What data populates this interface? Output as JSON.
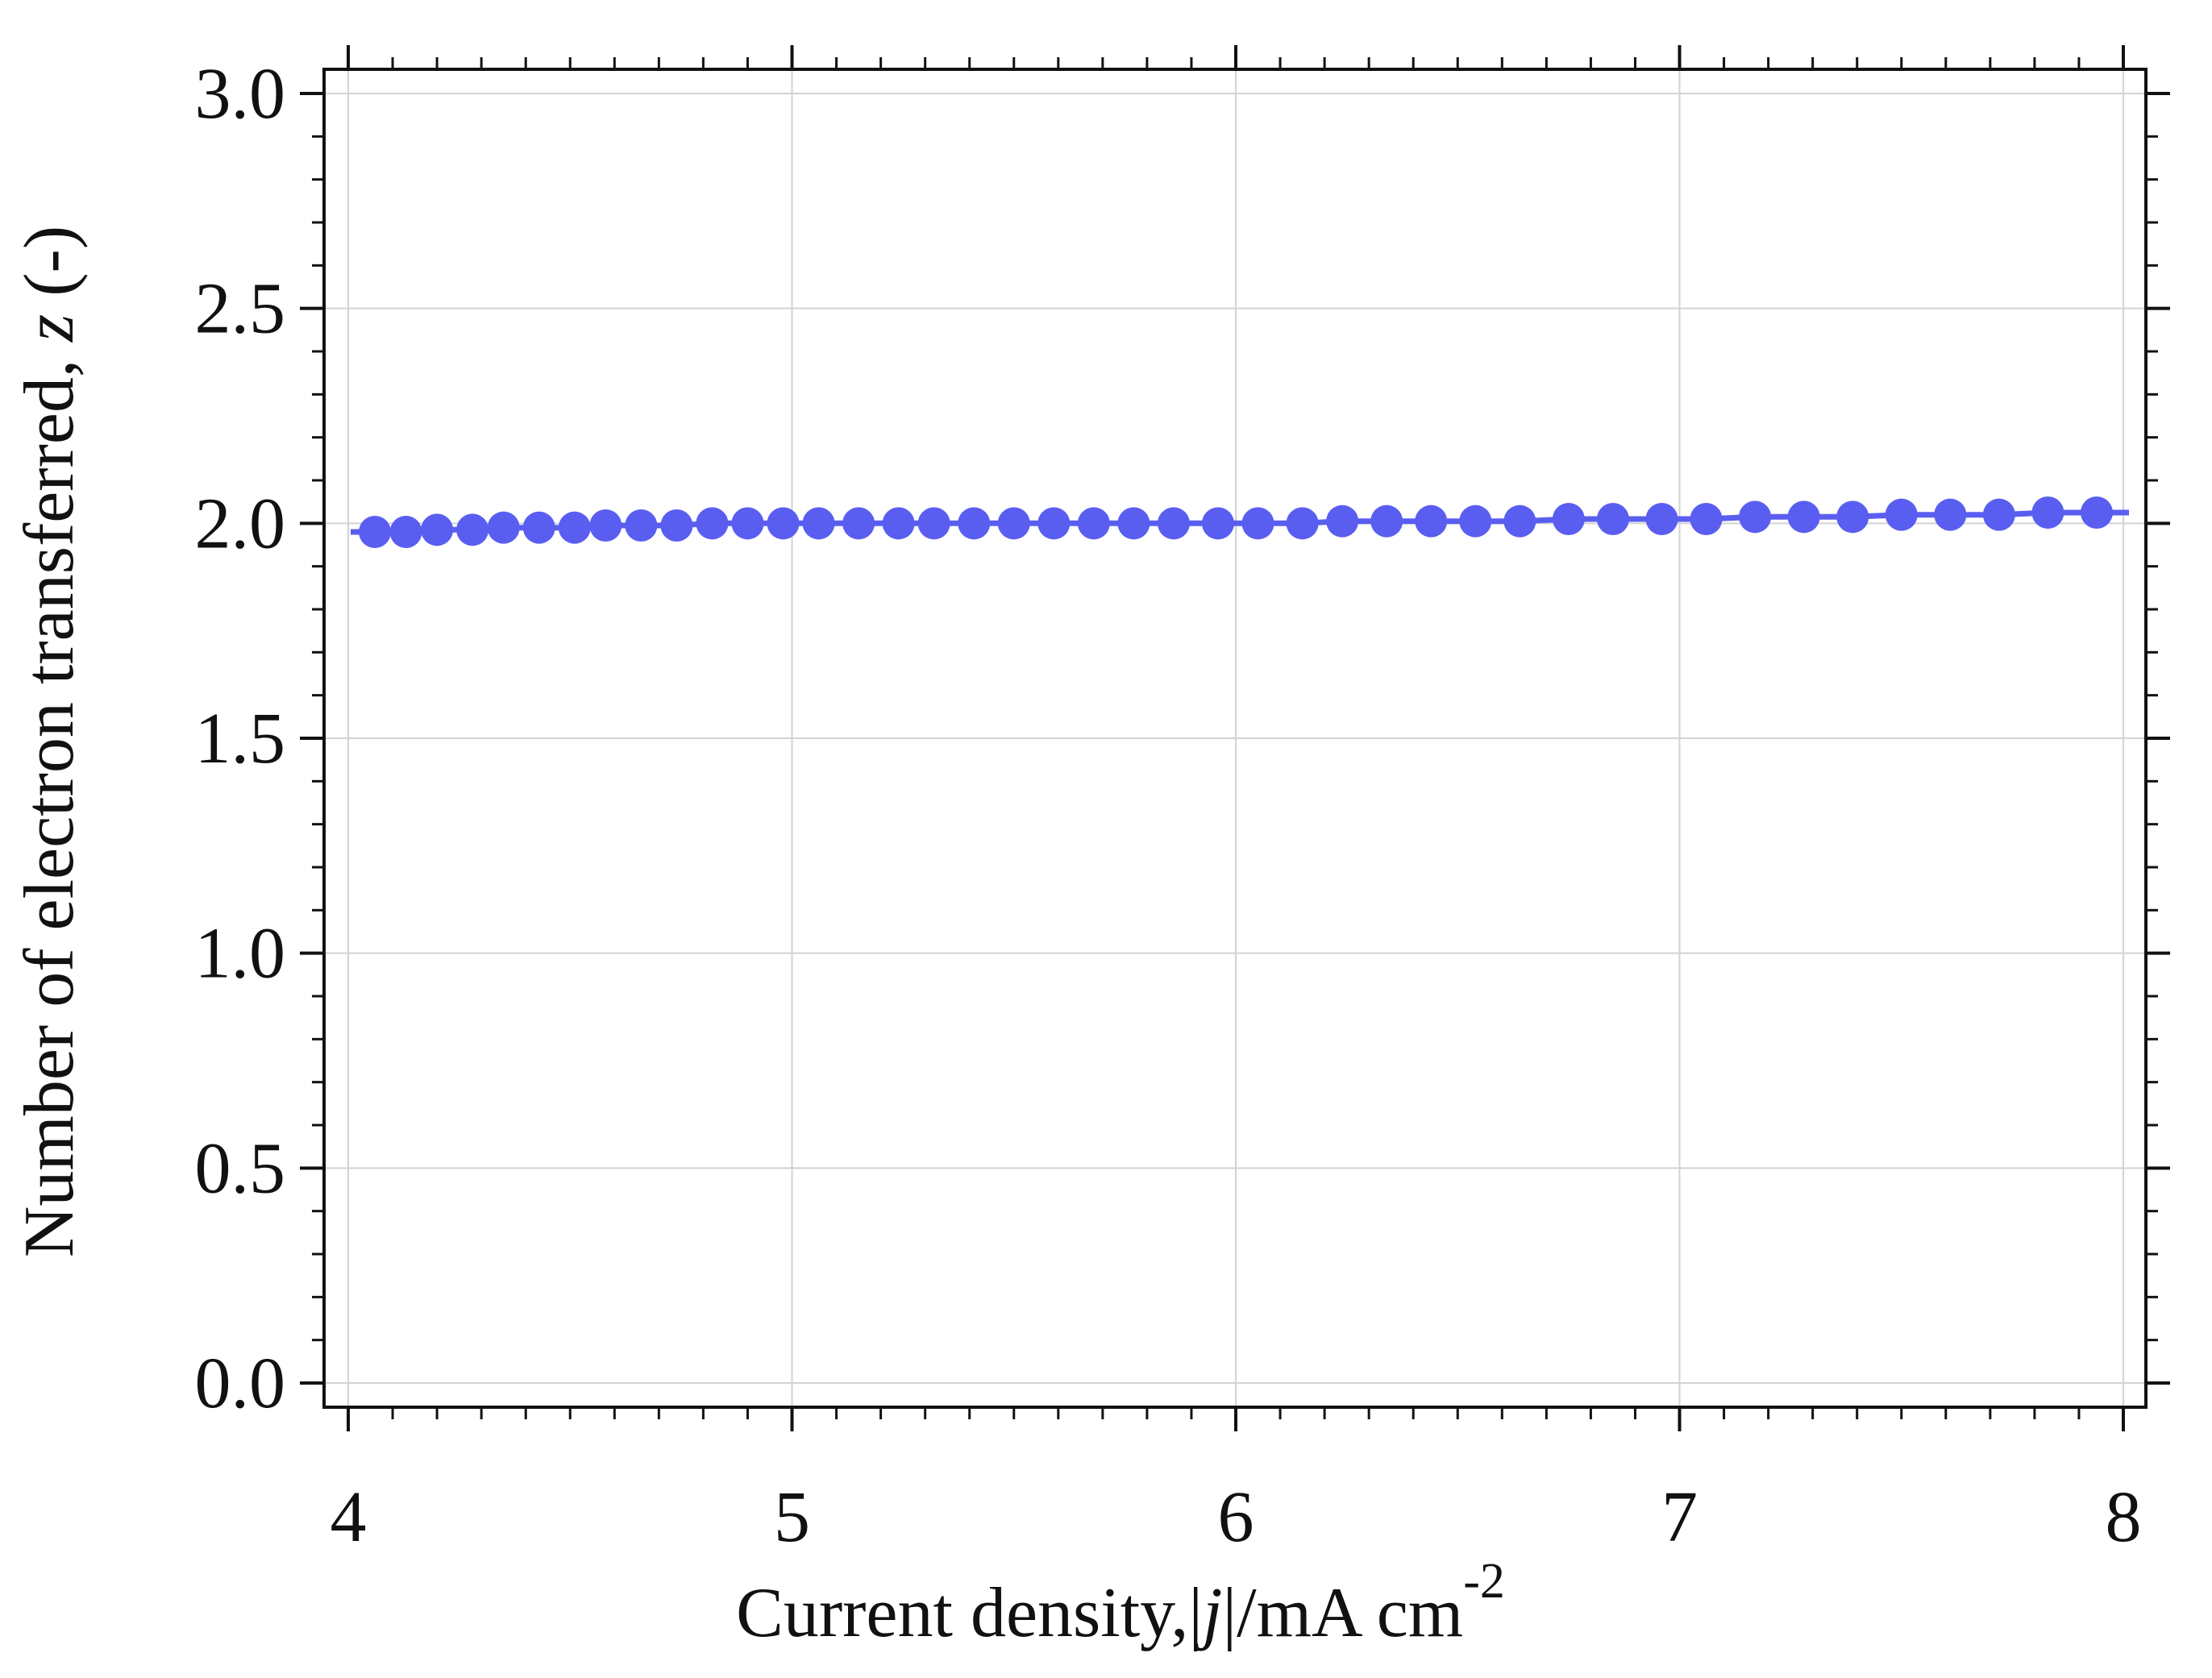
{
  "chart_data": {
    "type": "scatter",
    "title": "",
    "xlabel": {
      "prefix": "Current density,|",
      "italic": "j",
      "suffix": "|/mA cm",
      "superscript": "-2"
    },
    "ylabel": {
      "prefix": "Number of electron transferred, ",
      "italic": "z",
      "suffix": " (-)"
    },
    "xlim": [
      4,
      8
    ],
    "ylim": [
      0,
      3
    ],
    "xticks": [
      4,
      5,
      6,
      7,
      8
    ],
    "xtick_labels": [
      "4",
      "5",
      "6",
      "7",
      "8"
    ],
    "yticks": [
      0,
      0.5,
      1,
      1.5,
      2,
      2.5,
      3
    ],
    "ytick_labels": [
      "0.0",
      "0.5",
      "1.0",
      "1.5",
      "2.0",
      "2.5",
      "3.0"
    ],
    "grid": true,
    "marker_color": "#5a5ef0",
    "line_color": "#5a5ef0",
    "series": [
      {
        "x": [
          4.06,
          4.13,
          4.2,
          4.28,
          4.35,
          4.43,
          4.51,
          4.58,
          4.66,
          4.74,
          4.82,
          4.9,
          4.98,
          5.06,
          5.15,
          5.24,
          5.32,
          5.41,
          5.5,
          5.59,
          5.68,
          5.77,
          5.86,
          5.96,
          6.05,
          6.15,
          6.24,
          6.34,
          6.44,
          6.54,
          6.64,
          6.75,
          6.85,
          6.96,
          7.06,
          7.17,
          7.28,
          7.39,
          7.5,
          7.61,
          7.72,
          7.83,
          7.94
        ],
        "y": [
          1.98,
          1.98,
          1.985,
          1.985,
          1.99,
          1.99,
          1.99,
          1.995,
          1.995,
          1.995,
          2.0,
          2.0,
          2.0,
          2.0,
          2.0,
          2.0,
          2.0,
          2.0,
          2.0,
          2.0,
          2.0,
          2.0,
          2.0,
          2.0,
          2.0,
          2.0,
          2.005,
          2.005,
          2.005,
          2.005,
          2.005,
          2.01,
          2.01,
          2.01,
          2.01,
          2.015,
          2.015,
          2.015,
          2.02,
          2.02,
          2.02,
          2.025,
          2.025
        ]
      }
    ]
  }
}
